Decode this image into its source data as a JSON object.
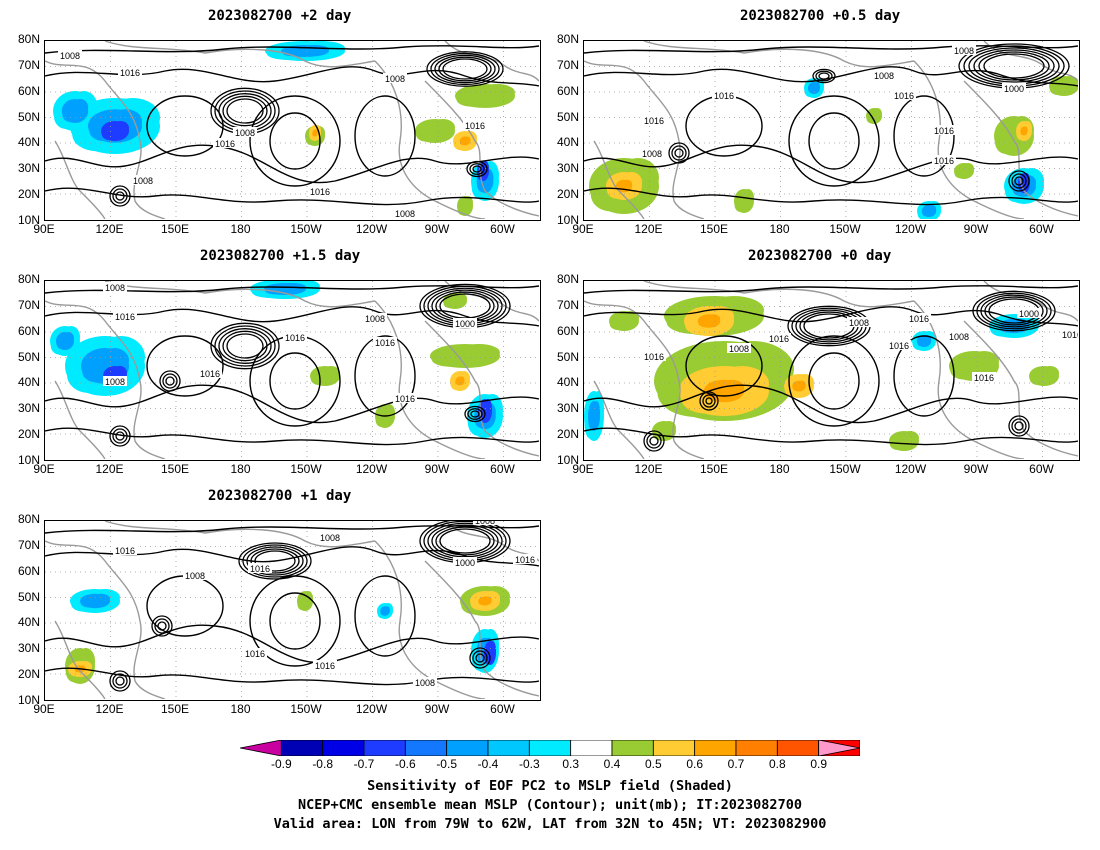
{
  "panels": [
    {
      "id": "p1",
      "title": "2023082700 +2 day"
    },
    {
      "id": "p2",
      "title": "2023082700 +0.5 day"
    },
    {
      "id": "p3",
      "title": "2023082700 +1.5 day"
    },
    {
      "id": "p4",
      "title": "2023082700 +0 day"
    },
    {
      "id": "p5",
      "title": "2023082700 +1 day"
    }
  ],
  "axes": {
    "y_ticks": [
      "80N",
      "70N",
      "60N",
      "50N",
      "40N",
      "30N",
      "20N",
      "10N"
    ],
    "x_ticks": [
      "90E",
      "120E",
      "150E",
      "180",
      "150W",
      "120W",
      "90W",
      "60W"
    ]
  },
  "contour_labels": {
    "l1000": "1000",
    "l1008": "1008",
    "l1016": "1016"
  },
  "colorbar": {
    "ticks": [
      "-0.9",
      "-0.8",
      "-0.7",
      "-0.6",
      "-0.5",
      "-0.4",
      "-0.3",
      "0.3",
      "0.4",
      "0.5",
      "0.6",
      "0.7",
      "0.8",
      "0.9"
    ],
    "colors": [
      "#c800a0",
      "#0000b4",
      "#0000e6",
      "#1e3cff",
      "#1478ff",
      "#00a0ff",
      "#00c8ff",
      "#00ebff",
      "#ffffff",
      "#99cc33",
      "#ffcc33",
      "#ffa500",
      "#ff7f00",
      "#ff5500",
      "#ff0000",
      "#ff99cc"
    ]
  },
  "captions": {
    "line1": "Sensitivity of EOF PC2 to MSLP field (Shaded)",
    "line2": "NCEP+CMC ensemble mean MSLP (Contour); unit(mb); IT:2023082700",
    "line3": "Valid area: LON from 79W to 62W, LAT from 32N to 45N; VT: 2023082900"
  }
}
